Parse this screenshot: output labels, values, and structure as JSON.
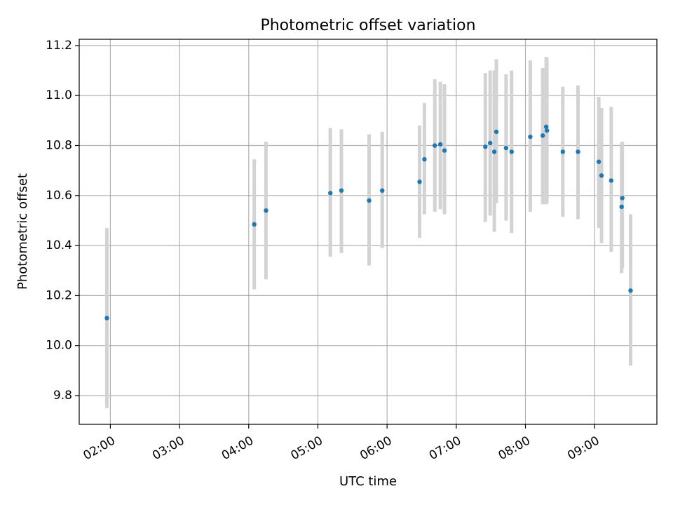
{
  "chart_data": {
    "type": "scatter",
    "title": "Photometric offset variation",
    "xlabel": "UTC time",
    "ylabel": "Photometric offset",
    "xlim_hours": [
      1.55,
      9.9
    ],
    "ylim": [
      9.685,
      11.225
    ],
    "x_ticks": [
      {
        "hours": 2,
        "label": "02:00"
      },
      {
        "hours": 3,
        "label": "03:00"
      },
      {
        "hours": 4,
        "label": "04:00"
      },
      {
        "hours": 5,
        "label": "05:00"
      },
      {
        "hours": 6,
        "label": "06:00"
      },
      {
        "hours": 7,
        "label": "07:00"
      },
      {
        "hours": 8,
        "label": "08:00"
      },
      {
        "hours": 9,
        "label": "09:00"
      }
    ],
    "y_ticks": [
      {
        "value": 9.8,
        "label": "9.8"
      },
      {
        "value": 10.0,
        "label": "10.0"
      },
      {
        "value": 10.2,
        "label": "10.2"
      },
      {
        "value": 10.4,
        "label": "10.4"
      },
      {
        "value": 10.6,
        "label": "10.6"
      },
      {
        "value": 10.8,
        "label": "10.8"
      },
      {
        "value": 11.0,
        "label": "11.0"
      },
      {
        "value": 11.2,
        "label": "11.2"
      }
    ],
    "grid": true,
    "marker_color": "#1f77b4",
    "errorbar_color": "#d3d3d3",
    "points": [
      {
        "t": 1.95,
        "y": 10.11,
        "lo": 9.75,
        "hi": 10.47
      },
      {
        "t": 4.08,
        "y": 10.485,
        "lo": 10.225,
        "hi": 10.745
      },
      {
        "t": 4.25,
        "y": 10.54,
        "lo": 10.265,
        "hi": 10.815
      },
      {
        "t": 5.18,
        "y": 10.61,
        "lo": 10.355,
        "hi": 10.87
      },
      {
        "t": 5.34,
        "y": 10.62,
        "lo": 10.37,
        "hi": 10.865
      },
      {
        "t": 5.74,
        "y": 10.58,
        "lo": 10.32,
        "hi": 10.845
      },
      {
        "t": 5.93,
        "y": 10.62,
        "lo": 10.39,
        "hi": 10.855
      },
      {
        "t": 6.47,
        "y": 10.655,
        "lo": 10.43,
        "hi": 10.88
      },
      {
        "t": 6.54,
        "y": 10.745,
        "lo": 10.525,
        "hi": 10.97
      },
      {
        "t": 6.69,
        "y": 10.8,
        "lo": 10.535,
        "hi": 11.065
      },
      {
        "t": 6.77,
        "y": 10.805,
        "lo": 10.545,
        "hi": 11.055
      },
      {
        "t": 6.83,
        "y": 10.78,
        "lo": 10.525,
        "hi": 11.045
      },
      {
        "t": 7.42,
        "y": 10.795,
        "lo": 10.495,
        "hi": 11.09
      },
      {
        "t": 7.49,
        "y": 10.81,
        "lo": 10.52,
        "hi": 11.1
      },
      {
        "t": 7.55,
        "y": 10.775,
        "lo": 10.455,
        "hi": 11.1
      },
      {
        "t": 7.58,
        "y": 10.855,
        "lo": 10.57,
        "hi": 11.145
      },
      {
        "t": 7.72,
        "y": 10.79,
        "lo": 10.5,
        "hi": 11.085
      },
      {
        "t": 7.8,
        "y": 10.775,
        "lo": 10.45,
        "hi": 11.1
      },
      {
        "t": 8.07,
        "y": 10.835,
        "lo": 10.535,
        "hi": 11.14
      },
      {
        "t": 8.25,
        "y": 10.84,
        "lo": 10.565,
        "hi": 11.11
      },
      {
        "t": 8.3,
        "y": 10.875,
        "lo": 10.565,
        "hi": 11.155
      },
      {
        "t": 8.31,
        "y": 10.86,
        "lo": 10.57,
        "hi": 11.15
      },
      {
        "t": 8.54,
        "y": 10.775,
        "lo": 10.515,
        "hi": 11.035
      },
      {
        "t": 8.76,
        "y": 10.775,
        "lo": 10.505,
        "hi": 11.04
      },
      {
        "t": 9.06,
        "y": 10.735,
        "lo": 10.47,
        "hi": 10.995
      },
      {
        "t": 9.1,
        "y": 10.68,
        "lo": 10.41,
        "hi": 10.95
      },
      {
        "t": 9.24,
        "y": 10.66,
        "lo": 10.375,
        "hi": 10.955
      },
      {
        "t": 9.39,
        "y": 10.555,
        "lo": 10.29,
        "hi": 10.81
      },
      {
        "t": 9.4,
        "y": 10.59,
        "lo": 10.31,
        "hi": 10.815
      },
      {
        "t": 9.52,
        "y": 10.22,
        "lo": 9.92,
        "hi": 10.525
      }
    ]
  }
}
